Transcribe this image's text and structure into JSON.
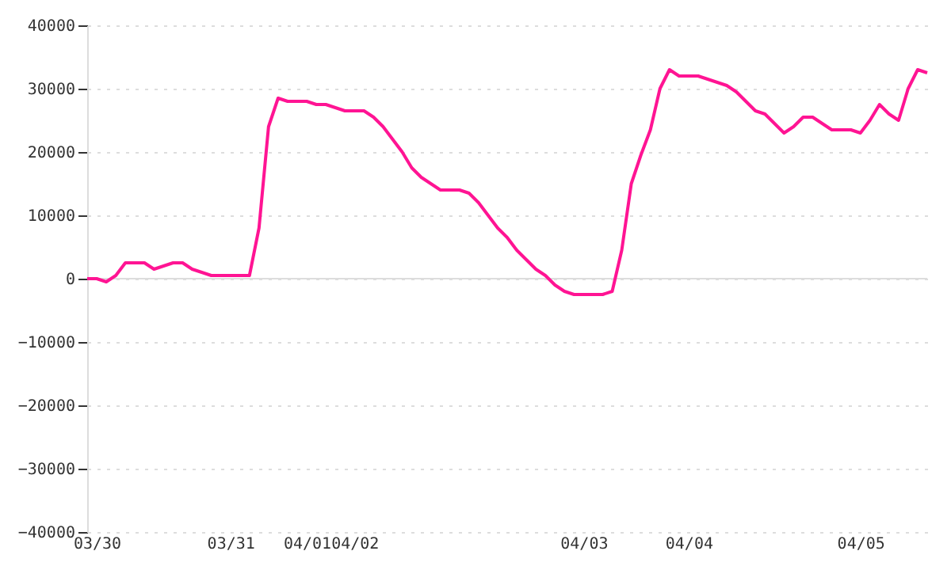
{
  "chart_data": {
    "type": "line",
    "categories": [
      null,
      "03/30",
      null,
      null,
      null,
      null,
      null,
      null,
      null,
      null,
      null,
      null,
      null,
      null,
      null,
      "03/31",
      null,
      null,
      null,
      null,
      null,
      null,
      null,
      "04/01",
      null,
      null,
      null,
      null,
      "04/02",
      null,
      null,
      null,
      null,
      null,
      null,
      null,
      null,
      null,
      null,
      null,
      null,
      null,
      null,
      null,
      null,
      null,
      null,
      null,
      null,
      null,
      null,
      null,
      "04/03",
      null,
      null,
      null,
      null,
      null,
      null,
      null,
      null,
      null,
      null,
      "04/04",
      null,
      null,
      null,
      null,
      null,
      null,
      null,
      null,
      null,
      null,
      null,
      null,
      null,
      null,
      null,
      null,
      null,
      "04/05",
      null,
      null,
      null,
      null,
      null,
      null,
      null
    ],
    "series": [
      {
        "color": "#ff1493",
        "values": [
          0,
          0,
          -500,
          500,
          2500,
          2500,
          2500,
          1500,
          2000,
          2500,
          2500,
          1500,
          1000,
          500,
          500,
          500,
          500,
          500,
          8000,
          24000,
          28500,
          28000,
          28000,
          28000,
          27500,
          27500,
          27000,
          26500,
          26500,
          26500,
          25500,
          24000,
          22000,
          20000,
          17500,
          16000,
          15000,
          14000,
          14000,
          14000,
          13500,
          12000,
          10000,
          8000,
          6500,
          4500,
          3000,
          1500,
          500,
          -1000,
          -2000,
          -2500,
          -2500,
          -2500,
          -2500,
          -2000,
          4500,
          15000,
          19500,
          23500,
          30000,
          33000,
          32000,
          32000,
          32000,
          31500,
          31000,
          30500,
          29500,
          28000,
          26500,
          26000,
          24500,
          23000,
          24000,
          25500,
          25500,
          24500,
          23500,
          23500,
          23500,
          23000,
          25000,
          27500,
          26000,
          25000,
          30000,
          33000,
          32500
        ]
      }
    ],
    "ylim": [
      -40000,
      40000
    ],
    "yticks": [
      -40000,
      -30000,
      -20000,
      -10000,
      0,
      10000,
      20000,
      30000,
      40000
    ],
    "ref_lines": [
      {
        "axis": "y",
        "value": 0,
        "color": "#dddddd"
      }
    ],
    "grid": "y",
    "marker": "none",
    "line_style": "solid"
  }
}
